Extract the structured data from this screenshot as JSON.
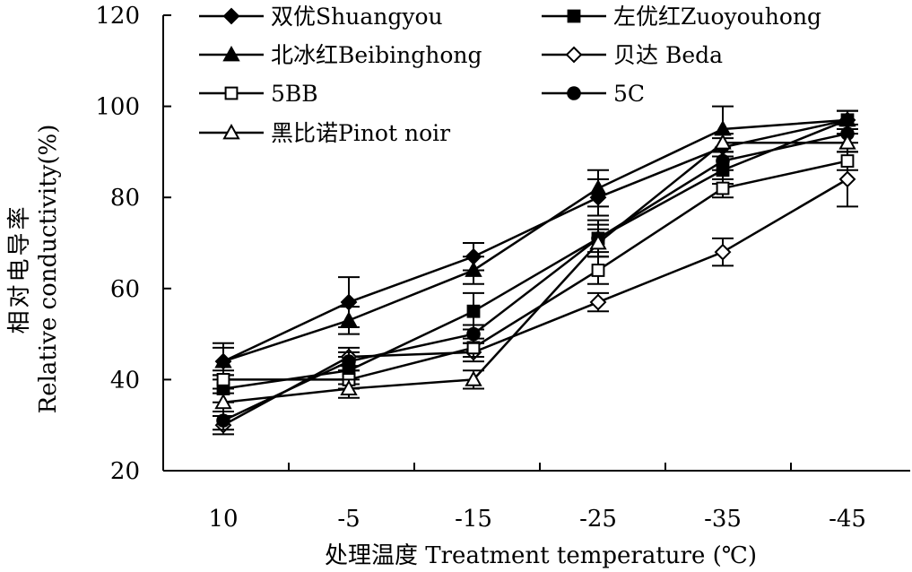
{
  "chart_data": {
    "type": "line",
    "categories": [
      "10",
      "-5",
      "-15",
      "-25",
      "-35",
      "-45"
    ],
    "xlabel": "处理温度 Treatment temperature (℃)",
    "ylabel": "相对电导率",
    "ylabel2": "Relative conductivity(%)",
    "ylim": [
      20,
      120
    ],
    "yticks": [
      "20",
      "40",
      "60",
      "80",
      "100",
      "120"
    ],
    "grid": false,
    "legend_position": "top",
    "series": [
      {
        "name": "双优Shuangyou",
        "marker": "diamond-filled",
        "values": [
          44,
          57,
          67,
          80,
          91,
          97
        ],
        "errors": [
          4,
          5.5,
          3,
          4,
          2,
          2
        ]
      },
      {
        "name": "左优红Zuoyouhong",
        "marker": "square-filled",
        "values": [
          38,
          42,
          55,
          71,
          86,
          97
        ],
        "errors": [
          3,
          3,
          4,
          4,
          3,
          2
        ]
      },
      {
        "name": "北冰红Beibinghong",
        "marker": "triangle-filled",
        "values": [
          44,
          53,
          64,
          82,
          95,
          97
        ],
        "errors": [
          3,
          3,
          3,
          4,
          5,
          2
        ]
      },
      {
        "name": "贝达 Beda",
        "marker": "diamond-open",
        "values": [
          30,
          45,
          46,
          57,
          68,
          84
        ],
        "errors": [
          2,
          2,
          2,
          2,
          3,
          6
        ]
      },
      {
        "name": "5BB",
        "marker": "square-open",
        "values": [
          40,
          40,
          47,
          64,
          82,
          88
        ],
        "errors": [
          2,
          2,
          2,
          3,
          2,
          2
        ]
      },
      {
        "name": "5C",
        "marker": "circle-filled",
        "values": [
          31,
          44,
          50,
          71,
          88,
          94
        ],
        "errors": [
          2,
          2,
          2,
          3,
          2,
          2
        ]
      },
      {
        "name": "黑比诺Pinot noir",
        "marker": "triangle-open",
        "values": [
          35,
          38,
          40,
          70,
          92,
          92
        ],
        "errors": [
          2,
          2,
          2,
          3,
          2,
          2
        ]
      }
    ]
  }
}
